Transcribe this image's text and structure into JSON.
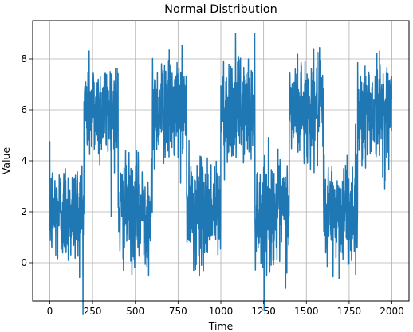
{
  "chart_data": {
    "type": "line",
    "title": "Normal Distribution",
    "xlabel": "Time",
    "ylabel": "Value",
    "xlim": [
      -100,
      2100
    ],
    "ylim": [
      -1.5,
      9.5
    ],
    "xticks": [
      0,
      250,
      500,
      750,
      1000,
      1250,
      1500,
      1750,
      2000
    ],
    "yticks": [
      0,
      2,
      4,
      6,
      8
    ],
    "grid": true,
    "n_points": 2000,
    "series": [
      {
        "name": "",
        "color": "#1f77b4",
        "segments": [
          {
            "x_start": 0,
            "x_end": 200,
            "mean": 2,
            "std": 1
          },
          {
            "x_start": 200,
            "x_end": 400,
            "mean": 6,
            "std": 1
          },
          {
            "x_start": 400,
            "x_end": 600,
            "mean": 2,
            "std": 1
          },
          {
            "x_start": 600,
            "x_end": 800,
            "mean": 6,
            "std": 1
          },
          {
            "x_start": 800,
            "x_end": 1000,
            "mean": 2,
            "std": 1
          },
          {
            "x_start": 1000,
            "x_end": 1200,
            "mean": 6,
            "std": 1
          },
          {
            "x_start": 1200,
            "x_end": 1400,
            "mean": 2,
            "std": 1
          },
          {
            "x_start": 1400,
            "x_end": 1600,
            "mean": 6,
            "std": 1
          },
          {
            "x_start": 1600,
            "x_end": 1800,
            "mean": 2,
            "std": 1
          },
          {
            "x_start": 1800,
            "x_end": 2000,
            "mean": 6,
            "std": 1
          }
        ]
      }
    ]
  }
}
